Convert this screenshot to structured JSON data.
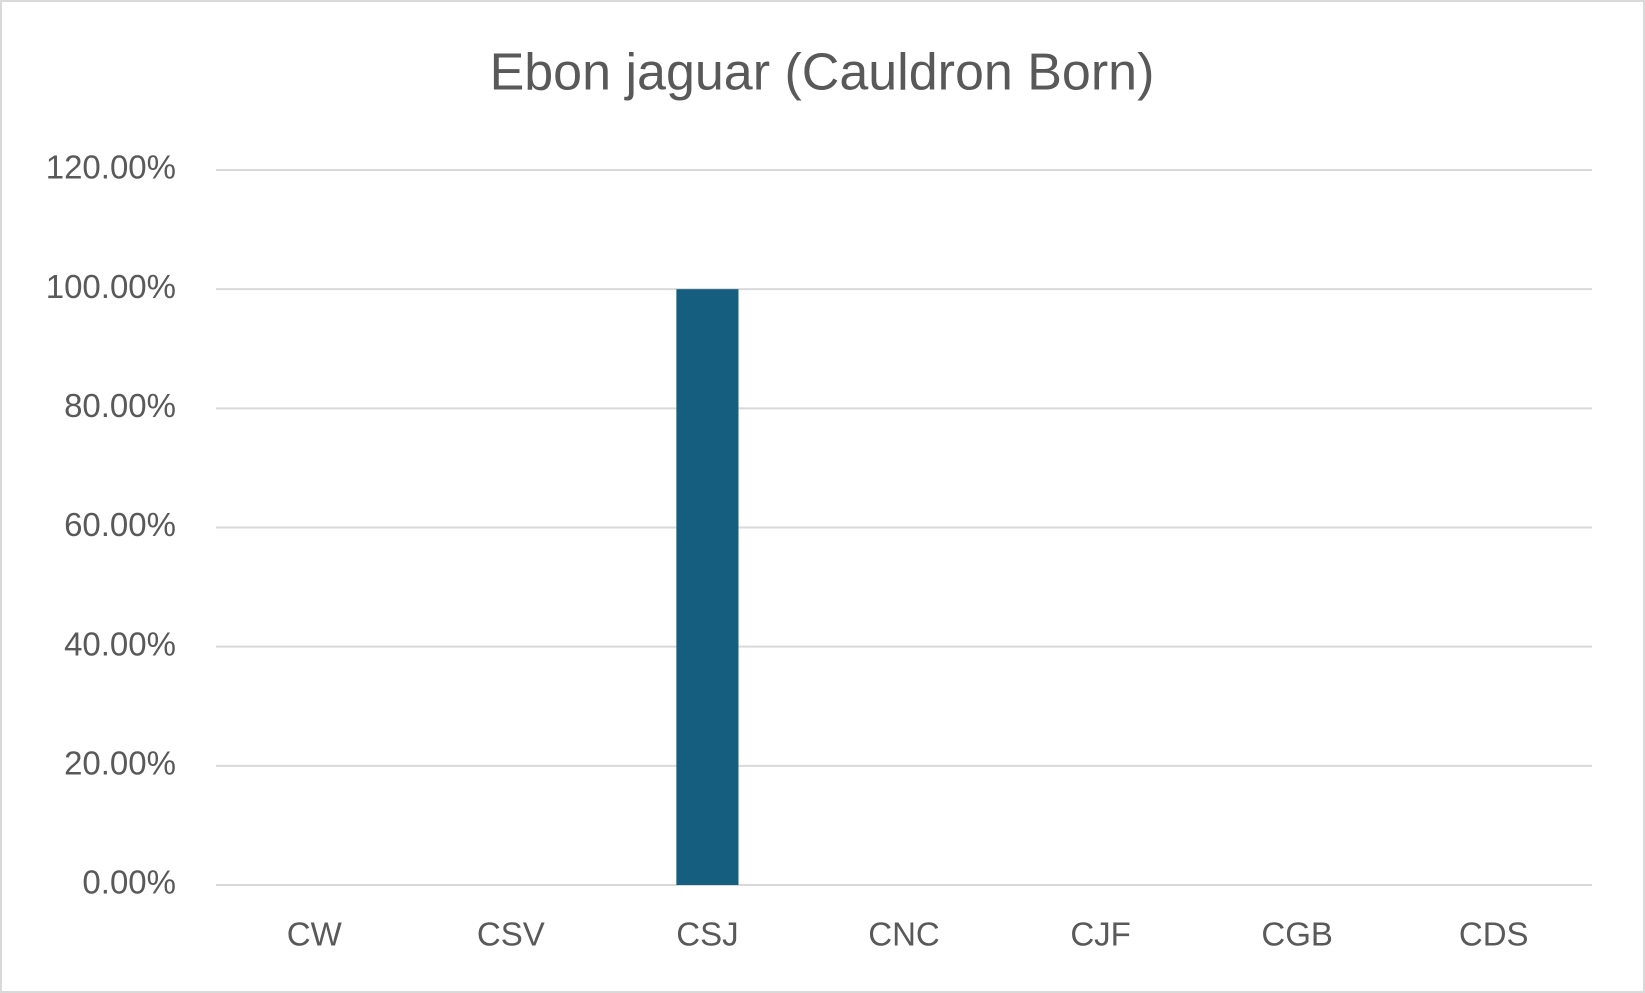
{
  "chart_data": {
    "type": "bar",
    "title": "Ebon jaguar (Cauldron Born)",
    "categories": [
      "CW",
      "CSV",
      "CSJ",
      "CNC",
      "CJF",
      "CGB",
      "CDS"
    ],
    "values": [
      0,
      0,
      100,
      0,
      0,
      0,
      0
    ],
    "color": "#165e80",
    "ylim": [
      0,
      120
    ],
    "yticks": [
      {
        "value": 0,
        "label": "0.00%"
      },
      {
        "value": 20,
        "label": "20.00%"
      },
      {
        "value": 40,
        "label": "40.00%"
      },
      {
        "value": 60,
        "label": "60.00%"
      },
      {
        "value": 80,
        "label": "80.00%"
      },
      {
        "value": 100,
        "label": "100.00%"
      },
      {
        "value": 120,
        "label": "120.00%"
      }
    ],
    "grid": true
  }
}
